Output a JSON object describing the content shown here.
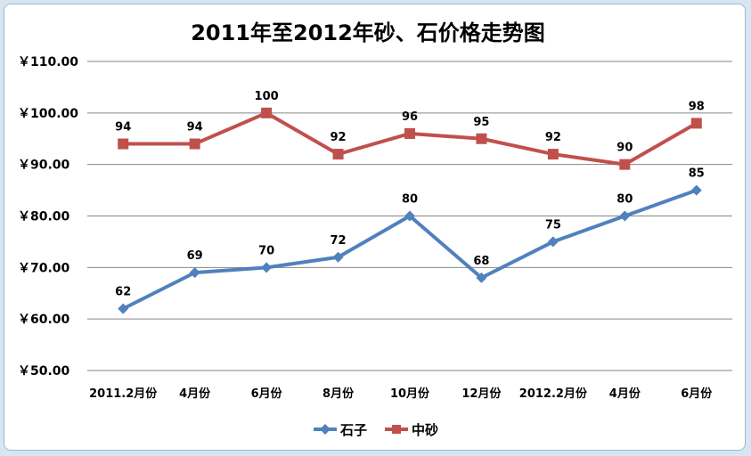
{
  "chart_data": {
    "type": "line",
    "title": "2011年至2012年砂、石价格走势图",
    "categories": [
      "2011.2月份",
      "4月份",
      "6月份",
      "8月份",
      "10月份",
      "12月份",
      "2012.2月份",
      "4月份",
      "6月份"
    ],
    "y_ticks": [
      "￥110.00",
      "￥100.00",
      "￥90.00",
      "￥80.00",
      "￥70.00",
      "￥60.00",
      "￥50.00"
    ],
    "ylim": [
      50,
      110
    ],
    "y_step": 10,
    "grid": true,
    "legend_position": "bottom",
    "series": [
      {
        "name": "石子",
        "values": [
          62,
          69,
          70,
          72,
          80,
          68,
          75,
          80,
          85
        ],
        "color": "#4f81bd",
        "marker": "diamond"
      },
      {
        "name": "中砂",
        "values": [
          94,
          94,
          100,
          92,
          96,
          95,
          92,
          90,
          98
        ],
        "color": "#c0504d",
        "marker": "square"
      }
    ]
  }
}
